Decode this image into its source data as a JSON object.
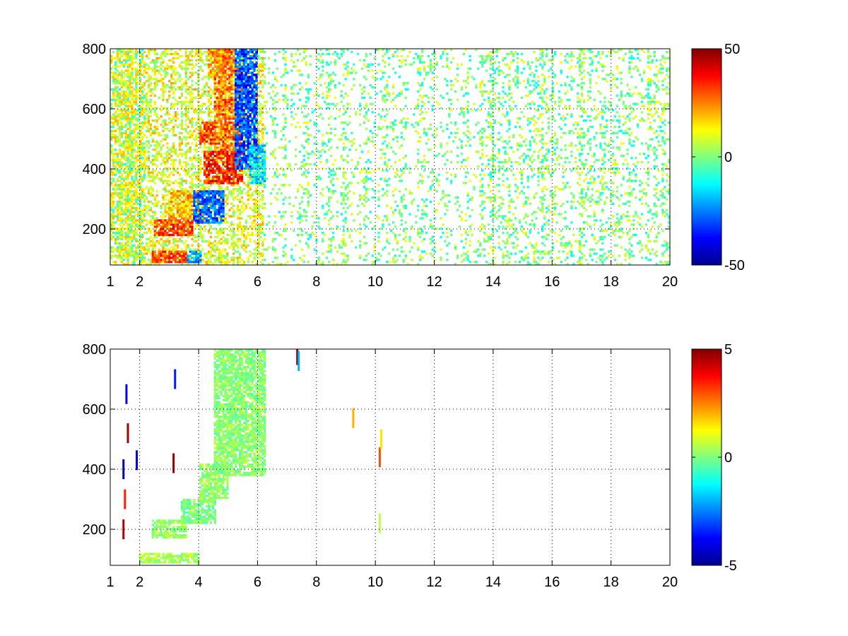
{
  "chart_data": [
    {
      "type": "heatmap",
      "title": "",
      "xlabel": "",
      "ylabel": "",
      "xlim": [
        1,
        20
      ],
      "ylim": [
        80,
        800
      ],
      "x_ticks": [
        1,
        2,
        4,
        6,
        8,
        10,
        12,
        14,
        16,
        18,
        20
      ],
      "y_ticks": [
        200,
        400,
        600,
        800
      ],
      "grid": true,
      "grid_style": "dotted",
      "colormap": "jet",
      "colorbar": {
        "placement": "right",
        "min": -50,
        "max": 50,
        "ticks": [
          -50,
          0,
          50
        ]
      },
      "seed": 7,
      "mode": "dense",
      "features": [
        {
          "shape": "band",
          "x": [
            2.4,
            3.6
          ],
          "y": [
            90,
            130
          ],
          "value": 32,
          "spread": 9
        },
        {
          "shape": "band",
          "x": [
            3.6,
            4.1
          ],
          "y": [
            90,
            130
          ],
          "value": -22,
          "spread": 9
        },
        {
          "shape": "band",
          "x": [
            2.5,
            3.8
          ],
          "y": [
            175,
            230
          ],
          "value": 30,
          "spread": 10
        },
        {
          "shape": "band",
          "x": [
            3.0,
            4.2
          ],
          "y": [
            230,
            330
          ],
          "value": 20,
          "spread": 10
        },
        {
          "shape": "band",
          "x": [
            3.8,
            4.9
          ],
          "y": [
            220,
            330
          ],
          "value": -28,
          "spread": 10
        },
        {
          "shape": "band",
          "x": [
            4.2,
            5.5
          ],
          "y": [
            350,
            460
          ],
          "value": 34,
          "spread": 10
        },
        {
          "shape": "band",
          "x": [
            4.5,
            5.5
          ],
          "y": [
            460,
            800
          ],
          "value": 26,
          "spread": 12
        },
        {
          "shape": "band",
          "x": [
            4.0,
            4.6
          ],
          "y": [
            480,
            560
          ],
          "value": 30,
          "spread": 10
        },
        {
          "shape": "band",
          "x": [
            4.3,
            4.9
          ],
          "y": [
            700,
            800
          ],
          "value": 22,
          "spread": 10
        },
        {
          "shape": "band",
          "x": [
            5.2,
            6.0
          ],
          "y": [
            400,
            800
          ],
          "value": -30,
          "spread": 12
        },
        {
          "shape": "band",
          "x": [
            5.7,
            6.3
          ],
          "y": [
            350,
            480
          ],
          "value": -15,
          "spread": 10
        }
      ]
    },
    {
      "type": "heatmap",
      "title": "",
      "xlabel": "",
      "ylabel": "",
      "xlim": [
        1,
        20
      ],
      "ylim": [
        80,
        800
      ],
      "x_ticks": [
        1,
        2,
        4,
        6,
        8,
        10,
        12,
        14,
        16,
        18,
        20
      ],
      "y_ticks": [
        200,
        400,
        600,
        800
      ],
      "grid": true,
      "grid_style": "dotted",
      "colormap": "jet",
      "colorbar": {
        "placement": "right",
        "min": -5,
        "max": 5,
        "ticks": [
          -5,
          0,
          5
        ]
      },
      "seed": 11,
      "mode": "sparse",
      "features": [
        {
          "shape": "band",
          "x": [
            2.0,
            4.0
          ],
          "y": [
            90,
            120
          ],
          "value": 0.4,
          "spread": 0.6
        },
        {
          "shape": "band",
          "x": [
            2.4,
            3.6
          ],
          "y": [
            170,
            230
          ],
          "value": 0.2,
          "spread": 0.6
        },
        {
          "shape": "band",
          "x": [
            3.4,
            4.6
          ],
          "y": [
            220,
            300
          ],
          "value": 0.0,
          "spread": 0.6
        },
        {
          "shape": "band",
          "x": [
            4.0,
            5.0
          ],
          "y": [
            300,
            420
          ],
          "value": 0.2,
          "spread": 0.6
        },
        {
          "shape": "band",
          "x": [
            4.5,
            6.3
          ],
          "y": [
            380,
            800
          ],
          "value": 0.1,
          "spread": 0.6
        }
      ],
      "points": [
        {
          "x": 1.45,
          "y": 200,
          "value": 4.5
        },
        {
          "x": 1.45,
          "y": 400,
          "value": -4.5
        },
        {
          "x": 1.5,
          "y": 300,
          "value": 3.5
        },
        {
          "x": 1.55,
          "y": 650,
          "value": -4.0
        },
        {
          "x": 1.6,
          "y": 520,
          "value": 4.6
        },
        {
          "x": 1.9,
          "y": 430,
          "value": -4.2
        },
        {
          "x": 3.15,
          "y": 420,
          "value": 4.8
        },
        {
          "x": 3.2,
          "y": 700,
          "value": -3.5
        },
        {
          "x": 7.35,
          "y": 780,
          "value": 4.8
        },
        {
          "x": 7.4,
          "y": 760,
          "value": -2.0
        },
        {
          "x": 9.25,
          "y": 570,
          "value": 2.0
        },
        {
          "x": 10.15,
          "y": 440,
          "value": 3.0
        },
        {
          "x": 10.2,
          "y": 500,
          "value": 1.5
        },
        {
          "x": 10.15,
          "y": 220,
          "value": 0.6
        }
      ]
    }
  ]
}
